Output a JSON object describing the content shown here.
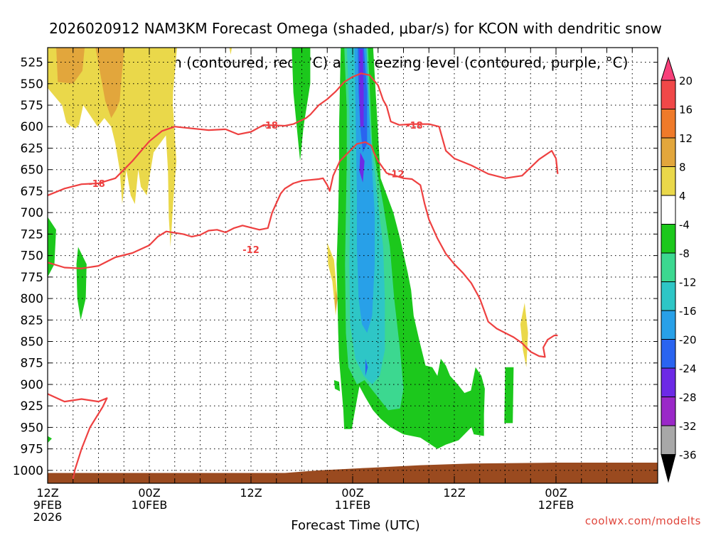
{
  "title_line1": "2026020912 NAM3KM Forecast Omega (shaded, μbar/s) for KCON with dendritic snow",
  "title_line2": "growth region (contoured, red, °C) and freezing level (contoured, purple, °C)",
  "credit": "coolwx.com/modelts",
  "colors": {
    "red_contour": "#ee4040",
    "ground": "#9a4a1f",
    "grid": "#000000"
  },
  "chart_data": {
    "type": "heatmap",
    "xlabel": "Forecast Time (UTC)",
    "ylabel": "",
    "x_range_hours": [
      0,
      72
    ],
    "y_range_hPa": [
      1015,
      508
    ],
    "y_ticks": [
      525,
      550,
      575,
      600,
      625,
      650,
      675,
      700,
      725,
      750,
      775,
      800,
      825,
      850,
      875,
      900,
      925,
      950,
      975,
      1000
    ],
    "x_ticks": [
      {
        "hour": 0,
        "lines": [
          "12Z",
          "9FEB",
          "2026"
        ]
      },
      {
        "hour": 12,
        "lines": [
          "00Z",
          "10FEB"
        ]
      },
      {
        "hour": 24,
        "lines": [
          "12Z"
        ]
      },
      {
        "hour": 36,
        "lines": [
          "00Z",
          "11FEB"
        ]
      },
      {
        "hour": 48,
        "lines": [
          "12Z"
        ]
      },
      {
        "hour": 60,
        "lines": [
          "00Z",
          "12FEB"
        ]
      }
    ],
    "colorbar": {
      "labels": [
        "20",
        "16",
        "12",
        "8",
        "4",
        "-4",
        "-8",
        "-12",
        "-16",
        "-20",
        "-24",
        "-28",
        "-32",
        "-36"
      ],
      "colors": [
        "#f8407a",
        "#f04848",
        "#ef7a2a",
        "#e2a63c",
        "#ead84a",
        "#ffffff",
        "#1cc81c",
        "#3cd890",
        "#2ec6c6",
        "#28a0e8",
        "#2a64f0",
        "#6c2ae6",
        "#9a28c8",
        "#a8a8a8"
      ]
    },
    "contour_labels": [
      {
        "text": "-18",
        "hour": 26.2,
        "hPa": 598
      },
      {
        "text": "-18",
        "hour": 43.3,
        "hPa": 598
      },
      {
        "text": "-18",
        "hour": 5.8,
        "hPa": 666
      },
      {
        "text": "-12",
        "hour": 41.1,
        "hPa": 655
      },
      {
        "text": "-12",
        "hour": 24.0,
        "hPa": 743
      }
    ],
    "contours": [
      {
        "name": "upper",
        "points": [
          [
            0,
            680
          ],
          [
            2,
            672
          ],
          [
            4,
            667
          ],
          [
            6,
            666
          ],
          [
            8,
            660
          ],
          [
            10,
            640
          ],
          [
            12,
            617
          ],
          [
            13.5,
            605
          ],
          [
            15,
            600
          ],
          [
            17,
            602
          ],
          [
            19,
            604
          ],
          [
            21,
            603
          ],
          [
            22.5,
            609
          ],
          [
            24,
            606
          ],
          [
            25.5,
            598
          ],
          [
            28,
            599
          ],
          [
            29,
            597
          ],
          [
            30.5,
            590
          ],
          [
            31,
            586
          ],
          [
            32,
            575
          ],
          [
            33,
            568
          ],
          [
            34,
            559
          ],
          [
            35,
            548
          ],
          [
            36,
            542
          ],
          [
            37,
            538
          ],
          [
            38,
            540
          ],
          [
            39,
            552
          ],
          [
            39.6,
            569
          ],
          [
            40,
            576
          ],
          [
            40.5,
            594
          ],
          [
            41.5,
            598
          ],
          [
            43,
            597
          ],
          [
            45,
            597
          ],
          [
            46.2,
            600
          ],
          [
            47,
            628
          ],
          [
            48,
            637
          ],
          [
            50,
            645
          ],
          [
            52,
            655
          ],
          [
            54,
            660
          ],
          [
            56,
            657
          ],
          [
            58,
            638
          ],
          [
            59.5,
            628
          ],
          [
            60,
            637
          ],
          [
            60.2,
            655
          ]
        ]
      },
      {
        "name": "lower",
        "points": [
          [
            0,
            758
          ],
          [
            2,
            764
          ],
          [
            4,
            765
          ],
          [
            6,
            762
          ],
          [
            8,
            752
          ],
          [
            10,
            747
          ],
          [
            12,
            738
          ],
          [
            13,
            728
          ],
          [
            14,
            722
          ],
          [
            16,
            725
          ],
          [
            17,
            728
          ],
          [
            18,
            726
          ],
          [
            19,
            721
          ],
          [
            20,
            720
          ],
          [
            21,
            723
          ],
          [
            22,
            718
          ],
          [
            23,
            715
          ],
          [
            25,
            720
          ],
          [
            26,
            718
          ],
          [
            26.5,
            700
          ],
          [
            27.5,
            678
          ],
          [
            28,
            672
          ],
          [
            29,
            666
          ],
          [
            30,
            663
          ],
          [
            31,
            662
          ],
          [
            32,
            661
          ],
          [
            32.5,
            660
          ],
          [
            33,
            668
          ],
          [
            33.3,
            675
          ],
          [
            33.7,
            657
          ],
          [
            34.5,
            640
          ],
          [
            35.5,
            630
          ],
          [
            36.5,
            620
          ],
          [
            37.5,
            618
          ],
          [
            38.2,
            622
          ],
          [
            38.5,
            630
          ],
          [
            39,
            640
          ],
          [
            40,
            654
          ],
          [
            41,
            657
          ],
          [
            42,
            660
          ],
          [
            43,
            661
          ],
          [
            44,
            668
          ],
          [
            44.5,
            690
          ],
          [
            45,
            708
          ],
          [
            46,
            730
          ],
          [
            47,
            748
          ],
          [
            48,
            760
          ],
          [
            49,
            770
          ],
          [
            50,
            782
          ],
          [
            51,
            800
          ],
          [
            52,
            827
          ],
          [
            53,
            835
          ],
          [
            55,
            845
          ],
          [
            56,
            852
          ],
          [
            57,
            862
          ],
          [
            58,
            867
          ],
          [
            58.7,
            868
          ],
          [
            58.5,
            857
          ],
          [
            59,
            848
          ],
          [
            59.8,
            843
          ],
          [
            60.2,
            843
          ]
        ]
      },
      {
        "name": "lower-left",
        "points": [
          [
            0,
            911
          ],
          [
            2,
            920
          ],
          [
            4,
            917
          ],
          [
            6,
            920
          ],
          [
            7,
            916
          ],
          [
            6.5,
            926
          ],
          [
            5,
            950
          ],
          [
            4,
            975
          ],
          [
            3.2,
            1000
          ],
          [
            3,
            1010
          ]
        ]
      }
    ]
  }
}
